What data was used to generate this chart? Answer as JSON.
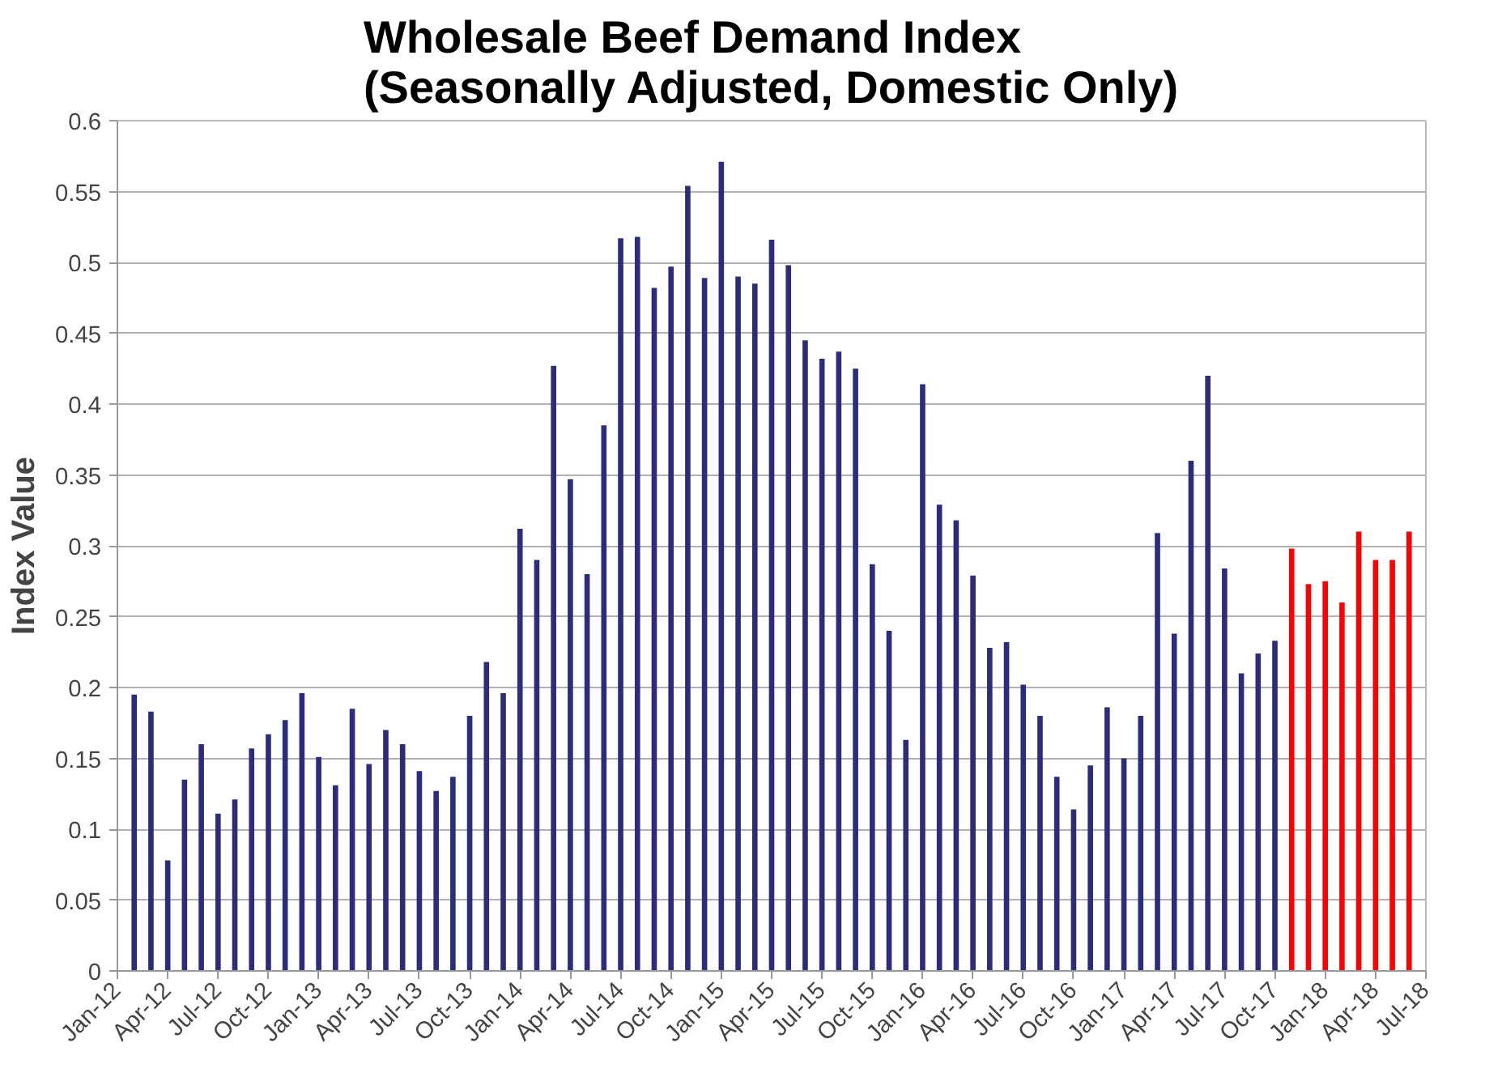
{
  "chart_data": {
    "type": "bar",
    "title": "Wholesale Beef Demand Index\n(Seasonally Adjusted, Domestic Only)",
    "ylabel": "Index Value",
    "xlim": [
      "2012-01",
      "2018-07"
    ],
    "xticks": [
      {
        "value": "2012-01",
        "label": "Jan-12"
      },
      {
        "value": "2012-04",
        "label": "Apr-12"
      },
      {
        "value": "2012-07",
        "label": "Jul-12"
      },
      {
        "value": "2012-10",
        "label": "Oct-12"
      },
      {
        "value": "2013-01",
        "label": "Jan-13"
      },
      {
        "value": "2013-04",
        "label": "Apr-13"
      },
      {
        "value": "2013-07",
        "label": "Jul-13"
      },
      {
        "value": "2013-10",
        "label": "Oct-13"
      },
      {
        "value": "2014-01",
        "label": "Jan-14"
      },
      {
        "value": "2014-04",
        "label": "Apr-14"
      },
      {
        "value": "2014-07",
        "label": "Jul-14"
      },
      {
        "value": "2014-10",
        "label": "Oct-14"
      },
      {
        "value": "2015-01",
        "label": "Jan-15"
      },
      {
        "value": "2015-04",
        "label": "Apr-15"
      },
      {
        "value": "2015-07",
        "label": "Jul-15"
      },
      {
        "value": "2015-10",
        "label": "Oct-15"
      },
      {
        "value": "2016-01",
        "label": "Jan-16"
      },
      {
        "value": "2016-04",
        "label": "Apr-16"
      },
      {
        "value": "2016-07",
        "label": "Jul-16"
      },
      {
        "value": "2016-10",
        "label": "Oct-16"
      },
      {
        "value": "2017-01",
        "label": "Jan-17"
      },
      {
        "value": "2017-04",
        "label": "Apr-17"
      },
      {
        "value": "2017-07",
        "label": "Jul-17"
      },
      {
        "value": "2017-10",
        "label": "Oct-17"
      },
      {
        "value": "2018-01",
        "label": "Jan-18"
      },
      {
        "value": "2018-04",
        "label": "Apr-18"
      },
      {
        "value": "2018-07",
        "label": "Jul-18"
      }
    ],
    "ylim": [
      0,
      0.6
    ],
    "yticks": [
      0,
      0.05,
      0.1,
      0.15,
      0.2,
      0.25,
      0.3,
      0.35,
      0.4,
      0.45,
      0.5,
      0.55,
      0.6
    ],
    "grid": "y",
    "series": [
      {
        "color": "#2b2d7c",
        "x": [
          "2012-02",
          "2012-03",
          "2012-04",
          "2012-05",
          "2012-06",
          "2012-07",
          "2012-08",
          "2012-09",
          "2012-10",
          "2012-11",
          "2012-12",
          "2013-01",
          "2013-02",
          "2013-03",
          "2013-04",
          "2013-05",
          "2013-06",
          "2013-07",
          "2013-08",
          "2013-09",
          "2013-10",
          "2013-11",
          "2013-12",
          "2014-01",
          "2014-02",
          "2014-03",
          "2014-04",
          "2014-05",
          "2014-06",
          "2014-07",
          "2014-08",
          "2014-09",
          "2014-10",
          "2014-11",
          "2014-12",
          "2015-01",
          "2015-02",
          "2015-03",
          "2015-04",
          "2015-05",
          "2015-06",
          "2015-07",
          "2015-08",
          "2015-09",
          "2015-10",
          "2015-11",
          "2015-12",
          "2016-01",
          "2016-02",
          "2016-03",
          "2016-04",
          "2016-05",
          "2016-06",
          "2016-07",
          "2016-08",
          "2016-09",
          "2016-10",
          "2016-11",
          "2016-12",
          "2017-01",
          "2017-02",
          "2017-03",
          "2017-04",
          "2017-05",
          "2017-06",
          "2017-07",
          "2017-08",
          "2017-09",
          "2017-10"
        ],
        "values": [
          0.195,
          0.183,
          0.078,
          0.135,
          0.16,
          0.111,
          0.121,
          0.157,
          0.167,
          0.177,
          0.196,
          0.151,
          0.131,
          0.185,
          0.146,
          0.17,
          0.16,
          0.141,
          0.127,
          0.137,
          0.18,
          0.218,
          0.196,
          0.312,
          0.29,
          0.427,
          0.347,
          0.28,
          0.385,
          0.517,
          0.518,
          0.482,
          0.497,
          0.554,
          0.489,
          0.571,
          0.49,
          0.485,
          0.516,
          0.498,
          0.445,
          0.432,
          0.437,
          0.425,
          0.287,
          0.24,
          0.163,
          0.414,
          0.329,
          0.318,
          0.279,
          0.228,
          0.232,
          0.202,
          0.18,
          0.137,
          0.114,
          0.145,
          0.186,
          0.15,
          0.18,
          0.309,
          0.238,
          0.36,
          0.42,
          0.284,
          0.21,
          0.224,
          0.233
        ]
      },
      {
        "color": "#ff0000",
        "x": [
          "2017-11",
          "2017-12",
          "2018-01",
          "2018-02",
          "2018-03",
          "2018-04",
          "2018-05",
          "2018-06"
        ],
        "values": [
          0.298,
          0.273,
          0.275,
          0.26,
          0.31,
          0.29,
          0.29,
          0.31
        ]
      }
    ]
  }
}
